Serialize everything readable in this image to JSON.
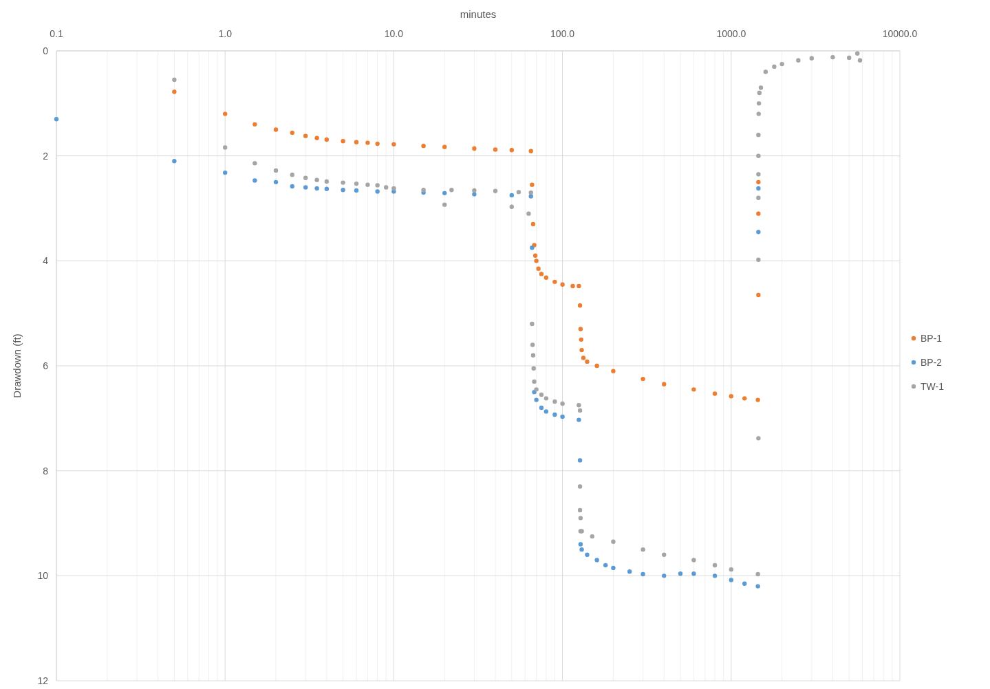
{
  "chart_data": {
    "type": "scatter",
    "xlabel": "minutes",
    "ylabel": "Drawdown (ft)",
    "log": "x",
    "xlim": [
      0.1,
      10000
    ],
    "ylim": [
      12,
      0
    ],
    "xticks": [
      {
        "value": 0.1,
        "label": "0.1"
      },
      {
        "value": 1,
        "label": "1.0"
      },
      {
        "value": 10,
        "label": "10.0"
      },
      {
        "value": 100,
        "label": "100.0"
      },
      {
        "value": 1000,
        "label": "1000.0"
      },
      {
        "value": 10000,
        "label": "10000.0"
      }
    ],
    "yticks": [
      0,
      2,
      4,
      6,
      8,
      10,
      12
    ],
    "grid": true,
    "legend": "right",
    "marker": "circle",
    "series": [
      {
        "name": "BP-1",
        "color": "#ed7d31",
        "x": [
          0.5,
          1,
          1.5,
          2,
          2.5,
          3,
          3.5,
          4,
          5,
          6,
          7,
          8,
          10,
          15,
          20,
          30,
          40,
          50,
          65,
          66,
          67,
          68,
          69,
          70,
          72,
          75,
          80,
          90,
          100,
          115,
          125,
          127,
          128,
          129,
          130,
          133,
          140,
          160,
          200,
          300,
          400,
          600,
          800,
          1000,
          1200,
          1440,
          1450,
          1450,
          1450
        ],
        "values": [
          0.78,
          1.2,
          1.4,
          1.5,
          1.56,
          1.62,
          1.66,
          1.69,
          1.72,
          1.74,
          1.75,
          1.77,
          1.78,
          1.81,
          1.83,
          1.86,
          1.88,
          1.89,
          1.91,
          2.55,
          3.3,
          3.7,
          3.9,
          4.0,
          4.15,
          4.25,
          4.32,
          4.4,
          4.45,
          4.48,
          4.48,
          4.85,
          5.3,
          5.5,
          5.7,
          5.85,
          5.92,
          6.0,
          6.1,
          6.25,
          6.35,
          6.45,
          6.53,
          6.58,
          6.62,
          6.65,
          4.65,
          3.1,
          2.5
        ]
      },
      {
        "name": "BP-2",
        "color": "#5b9bd5",
        "x": [
          0.1,
          0.5,
          1,
          1.5,
          2,
          2.5,
          3,
          3.5,
          4,
          5,
          6,
          8,
          10,
          15,
          20,
          30,
          50,
          65,
          66,
          68,
          70,
          75,
          80,
          90,
          100,
          125,
          127,
          128,
          130,
          140,
          160,
          180,
          200,
          250,
          300,
          400,
          500,
          600,
          800,
          1000,
          1200,
          1440,
          1450,
          1450
        ],
        "values": [
          1.3,
          2.1,
          2.32,
          2.47,
          2.5,
          2.58,
          2.6,
          2.62,
          2.63,
          2.65,
          2.66,
          2.68,
          2.68,
          2.7,
          2.71,
          2.73,
          2.75,
          2.77,
          3.75,
          6.5,
          6.65,
          6.8,
          6.87,
          6.93,
          6.97,
          7.03,
          7.8,
          9.4,
          9.5,
          9.6,
          9.7,
          9.8,
          9.85,
          9.92,
          9.97,
          10.0,
          9.96,
          9.96,
          10.0,
          10.08,
          10.15,
          10.2,
          3.45,
          2.62
        ]
      },
      {
        "name": "TW-1",
        "color": "#a5a5a5",
        "x": [
          0.5,
          1,
          1.5,
          2,
          2.5,
          3,
          3.5,
          4,
          5,
          6,
          7,
          8,
          9,
          10,
          15,
          20,
          22,
          30,
          40,
          50,
          55,
          63,
          65,
          66,
          66.5,
          67,
          67.5,
          68,
          70,
          75,
          80,
          90,
          100,
          125,
          127,
          127,
          127,
          128,
          128,
          130,
          150,
          200,
          300,
          400,
          600,
          800,
          1000,
          1440,
          1450,
          1450,
          1450,
          1450,
          1450,
          1450,
          1455,
          1460,
          1470,
          1500,
          1600,
          1800,
          2000,
          2500,
          3000,
          4000,
          5000,
          5600,
          5800
        ],
        "values": [
          0.55,
          1.84,
          2.14,
          2.28,
          2.36,
          2.42,
          2.46,
          2.49,
          2.51,
          2.53,
          2.55,
          2.56,
          2.6,
          2.62,
          2.65,
          2.93,
          2.65,
          2.66,
          2.67,
          2.97,
          2.69,
          3.1,
          2.7,
          5.2,
          5.6,
          5.8,
          6.05,
          6.3,
          6.45,
          6.55,
          6.62,
          6.68,
          6.72,
          6.75,
          6.85,
          8.3,
          8.75,
          8.9,
          9.15,
          9.15,
          9.25,
          9.35,
          9.5,
          9.6,
          9.7,
          9.8,
          9.88,
          9.97,
          7.38,
          3.98,
          2.8,
          2.35,
          2.0,
          1.6,
          1.2,
          1.0,
          0.8,
          0.7,
          0.4,
          0.3,
          0.25,
          0.18,
          0.14,
          0.12,
          0.13,
          0.05,
          0.18
        ]
      }
    ]
  }
}
